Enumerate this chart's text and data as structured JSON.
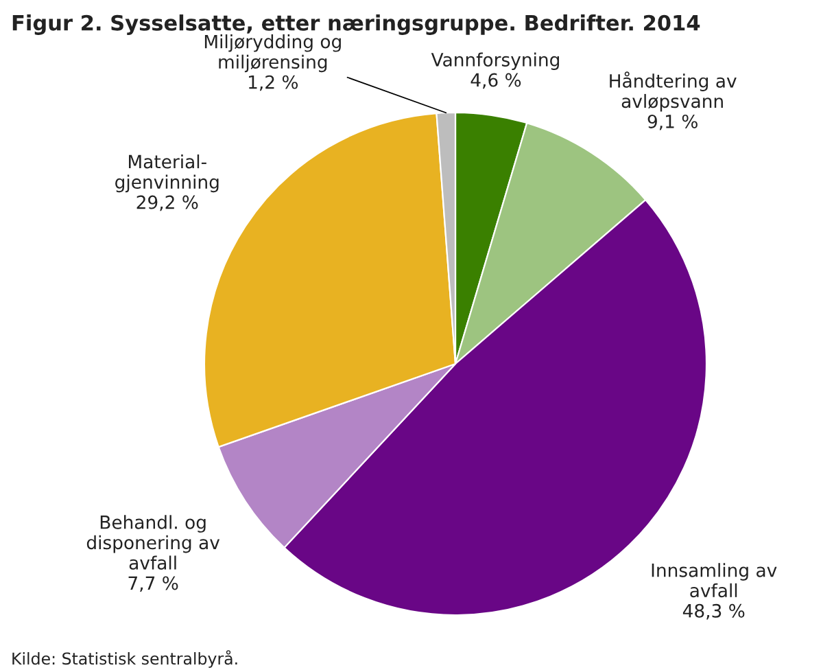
{
  "chart_data": {
    "type": "pie",
    "title": "Figur 2. Sysselsatte, etter næringsgruppe. Bedrifter. 2014",
    "categories": [
      "Vannforsyning",
      "Håndtering av\navløpsvann",
      "Innsamling av\navfall",
      "Behandl. og\ndisponering av\navfall",
      "Material-\ngjenvinning",
      "Miljørydding og\nmiljørensing"
    ],
    "values": [
      4.6,
      9.1,
      48.3,
      7.7,
      29.2,
      1.2
    ],
    "value_labels": [
      "4,6 %",
      "9,1 %",
      "48,3 %",
      "7,7 %",
      "29,2 %",
      "1,2 %"
    ],
    "colors": [
      "#3a8000",
      "#9dc480",
      "#690686",
      "#b385c6",
      "#e8b222",
      "#bdbdbd"
    ],
    "annotations": [
      "Kilde: Statistisk sentralbyrå."
    ]
  }
}
